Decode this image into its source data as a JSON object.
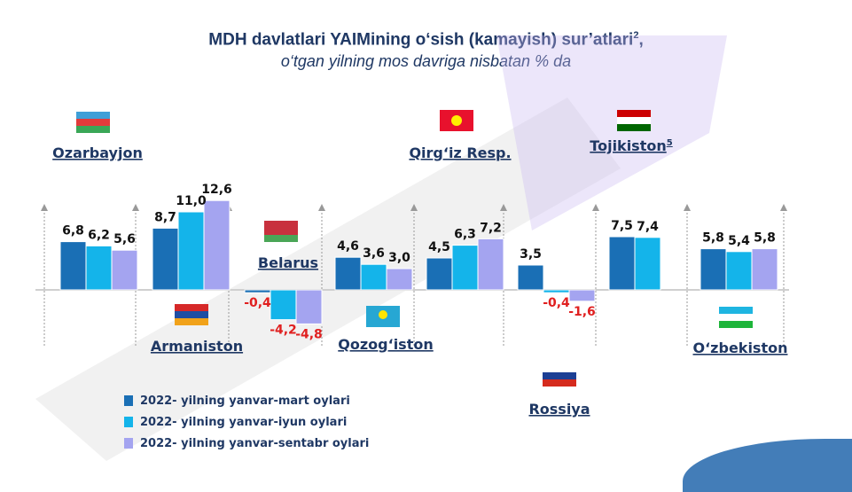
{
  "title": "MDH davlatlari YAIMining o‘sish (kamayish) sur’atlari",
  "title_sup": "2",
  "title_suffix": ",",
  "subtitle": "o‘tgan yilning mos davriga nisbatan % da",
  "colors": {
    "series1": "#1a6fb5",
    "series2": "#14b4ea",
    "series3": "#a4a4f0",
    "positive_label": "#111111",
    "negative_label": "#e02020"
  },
  "chart_data": {
    "type": "bar",
    "categories": [
      "Ozarbayjon",
      "Armaniston",
      "Belarus",
      "Qozog‘iston",
      "Qirg‘iz Resp.",
      "Rossiya",
      "Tojikiston",
      "O‘zbekiston"
    ],
    "category_sup": [
      "",
      "",
      "",
      "",
      "",
      "",
      "5",
      ""
    ],
    "series": [
      {
        "name": "2022- yilning yanvar-mart oylari",
        "values": [
          6.8,
          8.7,
          -0.4,
          4.6,
          4.5,
          3.5,
          7.5,
          5.8
        ]
      },
      {
        "name": "2022- yilning yanvar-iyun oylari",
        "values": [
          6.2,
          11.0,
          -4.2,
          3.6,
          6.3,
          -0.4,
          7.4,
          5.4
        ]
      },
      {
        "name": "2022- yilning yanvar-sentabr oylari",
        "values": [
          5.6,
          12.6,
          -4.8,
          3.0,
          7.2,
          -1.6,
          null,
          5.8
        ]
      }
    ],
    "value_labels": [
      [
        "6,8",
        "6,2",
        "5,6"
      ],
      [
        "8,7",
        "11,0",
        "12,6"
      ],
      [
        "-0,4",
        "-4,2",
        "-4,8"
      ],
      [
        "4,6",
        "3,6",
        "3,0"
      ],
      [
        "4,5",
        "6,3",
        "7,2"
      ],
      [
        "3,5",
        "-0,4",
        "-1,6"
      ],
      [
        "7,5",
        "7,4",
        ""
      ],
      [
        "5,8",
        "5,4",
        "5,8"
      ]
    ],
    "legend_position": "bottom-left"
  },
  "legend": [
    {
      "label": "2022- yilning yanvar-mart oylari"
    },
    {
      "label": "2022- yilning yanvar-iyun oylari"
    },
    {
      "label": "2022- yilning yanvar-sentabr oylari"
    }
  ],
  "flags": [
    "azerbaijan-flag",
    "armenia-flag",
    "belarus-flag",
    "kazakhstan-flag",
    "kyrgyzstan-flag",
    "russia-flag",
    "tajikistan-flag",
    "uzbekistan-flag"
  ]
}
